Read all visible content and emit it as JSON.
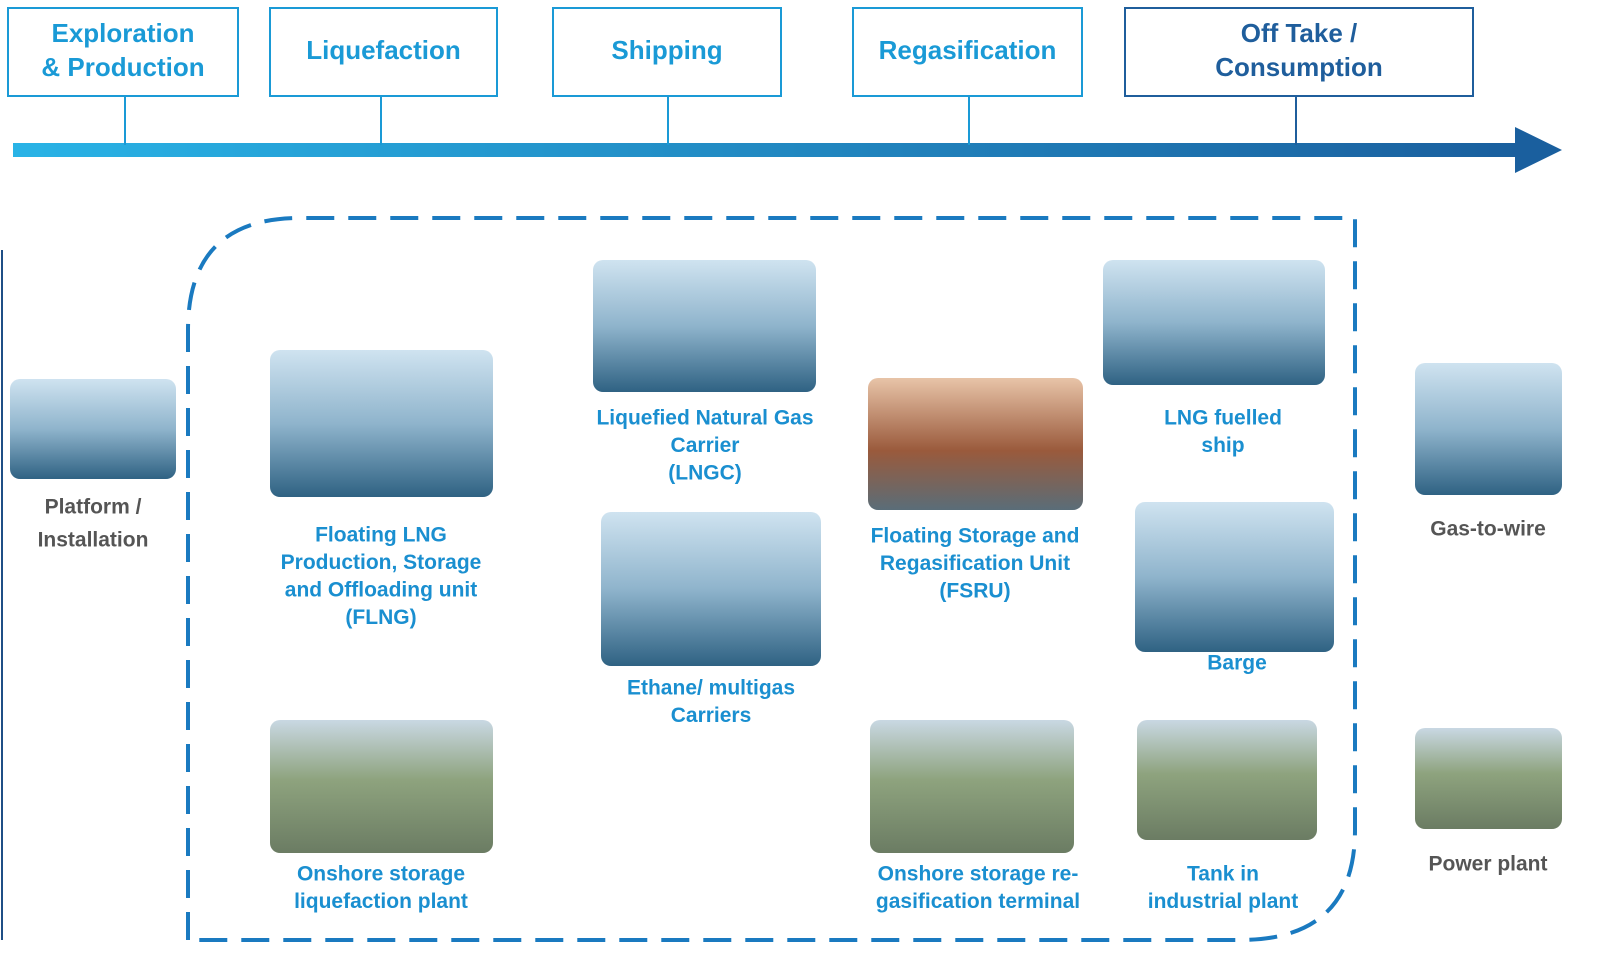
{
  "stages": [
    {
      "lines": [
        "Exploration",
        "& Production"
      ]
    },
    {
      "lines": [
        "Liquefaction"
      ]
    },
    {
      "lines": [
        "Shipping"
      ]
    },
    {
      "lines": [
        "Regasification"
      ]
    },
    {
      "lines": [
        "Off Take /",
        "Consumption"
      ]
    }
  ],
  "items": [
    {
      "lines": [
        "Platform /",
        "Installation"
      ]
    },
    {
      "lines": [
        "Floating LNG",
        "Production, Storage",
        "and Offloading unit",
        "(FLNG)"
      ]
    },
    {
      "lines": [
        "Onshore storage",
        "liquefaction plant"
      ]
    },
    {
      "lines": [
        "Liquefied Natural Gas",
        "Carrier",
        "(LNGC)"
      ]
    },
    {
      "lines": [
        "Ethane/ multigas",
        "Carriers"
      ]
    },
    {
      "lines": [
        "Floating Storage and",
        "Regasification Unit",
        "(FSRU)"
      ]
    },
    {
      "lines": [
        "Onshore storage re-",
        "gasification terminal"
      ]
    },
    {
      "lines": [
        "LNG fuelled",
        "ship"
      ]
    },
    {
      "lines": [
        "Barge"
      ]
    },
    {
      "lines": [
        "Tank in",
        "industrial plant"
      ]
    },
    {
      "lines": [
        "Gas-to-wire"
      ]
    },
    {
      "lines": [
        "Power plant"
      ]
    }
  ]
}
